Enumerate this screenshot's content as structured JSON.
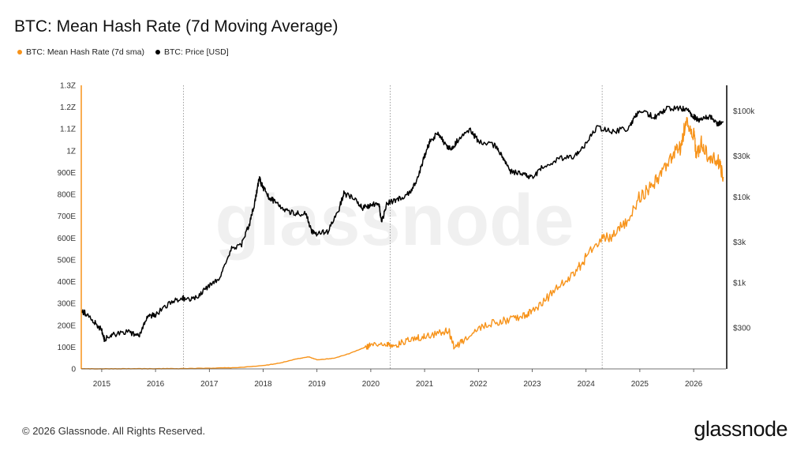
{
  "title": "BTC: Mean Hash Rate (7d Moving Average)",
  "legend": {
    "items": [
      {
        "label": "BTC: Mean Hash Rate (7d sma)",
        "color": "#f7931a"
      },
      {
        "label": "BTC: Price [USD]",
        "color": "#000000"
      }
    ]
  },
  "watermark": "glassnode",
  "footer": {
    "copyright": "© 2026 Glassnode. All Rights Reserved.",
    "logo": "glassnode"
  },
  "chart_data": {
    "type": "line",
    "x_ticks": [
      "2015",
      "2016",
      "2017",
      "2018",
      "2019",
      "2020",
      "2021",
      "2022",
      "2023",
      "2024",
      "2025",
      "2026"
    ],
    "x_range": [
      2014.62,
      2026.6
    ],
    "y_left": {
      "ticks": [
        "0",
        "100E",
        "200E",
        "300E",
        "400E",
        "500E",
        "600E",
        "700E",
        "800E",
        "900E",
        "1Z",
        "1.1Z",
        "1.2Z",
        "1.3Z"
      ],
      "range": [
        0,
        1300
      ],
      "unit": "EH/s"
    },
    "y_right": {
      "scale": "log",
      "ticks": [
        "$300",
        "$1k",
        "$3k",
        "$10k",
        "$30k",
        "$100k"
      ],
      "tick_values": [
        300,
        1000,
        3000,
        10000,
        30000,
        100000
      ],
      "range": [
        100,
        200000
      ]
    },
    "vertical_markers": [
      2016.52,
      2020.36,
      2024.3
    ],
    "series": [
      {
        "name": "BTC: Mean Hash Rate (7d sma)",
        "axis": "left",
        "color": "#f7931a",
        "x": [
          2014.62,
          2015.0,
          2015.5,
          2016.0,
          2016.5,
          2017.0,
          2017.5,
          2018.0,
          2018.3,
          2018.6,
          2018.85,
          2019.0,
          2019.3,
          2019.6,
          2019.85,
          2020.0,
          2020.3,
          2020.4,
          2020.6,
          2020.85,
          2021.0,
          2021.3,
          2021.45,
          2021.55,
          2021.7,
          2022.0,
          2022.3,
          2022.6,
          2022.85,
          2023.0,
          2023.3,
          2023.6,
          2023.85,
          2024.0,
          2024.3,
          2024.5,
          2024.75,
          2025.0,
          2025.2,
          2025.4,
          2025.6,
          2025.75,
          2025.85,
          2026.0,
          2026.05,
          2026.15,
          2026.3,
          2026.45,
          2026.55
        ],
        "values": [
          0.3,
          0.4,
          0.5,
          1,
          1.5,
          3,
          6,
          15,
          26,
          45,
          55,
          42,
          48,
          70,
          95,
          110,
          120,
          100,
          125,
          140,
          150,
          165,
          175,
          95,
          125,
          185,
          215,
          225,
          245,
          265,
          330,
          400,
          460,
          510,
          600,
          610,
          680,
          790,
          830,
          900,
          980,
          1010,
          1130,
          1080,
          980,
          1040,
          960,
          960,
          880
        ]
      },
      {
        "name": "BTC: Price [USD]",
        "axis": "right",
        "color": "#000000",
        "x": [
          2014.62,
          2014.75,
          2014.9,
          2015.0,
          2015.05,
          2015.2,
          2015.5,
          2015.7,
          2015.85,
          2016.0,
          2016.3,
          2016.5,
          2016.55,
          2016.8,
          2017.0,
          2017.2,
          2017.4,
          2017.6,
          2017.75,
          2017.85,
          2017.93,
          2017.97,
          2018.1,
          2018.2,
          2018.4,
          2018.6,
          2018.8,
          2018.9,
          2019.0,
          2019.2,
          2019.4,
          2019.5,
          2019.7,
          2019.85,
          2020.0,
          2020.15,
          2020.2,
          2020.3,
          2020.5,
          2020.7,
          2020.85,
          2021.0,
          2021.1,
          2021.25,
          2021.4,
          2021.5,
          2021.6,
          2021.85,
          2022.0,
          2022.3,
          2022.45,
          2022.6,
          2022.85,
          2023.0,
          2023.2,
          2023.5,
          2023.8,
          2024.0,
          2024.2,
          2024.5,
          2024.8,
          2024.95,
          2025.1,
          2025.3,
          2025.5,
          2025.75,
          2025.9,
          2026.0,
          2026.1,
          2026.3,
          2026.45,
          2026.55
        ],
        "values": [
          480,
          420,
          330,
          280,
          220,
          250,
          270,
          240,
          400,
          430,
          600,
          680,
          640,
          700,
          950,
          1150,
          2500,
          2800,
          5000,
          9000,
          17000,
          14000,
          10000,
          9000,
          7000,
          6500,
          6300,
          4000,
          3700,
          4000,
          7000,
          11000,
          9500,
          7500,
          8000,
          8500,
          5000,
          8500,
          9500,
          11000,
          15000,
          30000,
          45000,
          55000,
          40000,
          35000,
          45000,
          60000,
          45000,
          40000,
          30000,
          20000,
          18000,
          16500,
          23000,
          28000,
          30000,
          42000,
          65000,
          58000,
          64000,
          95000,
          95000,
          85000,
          107000,
          110000,
          100000,
          87000,
          78000,
          88000,
          70000,
          76000
        ]
      }
    ]
  }
}
